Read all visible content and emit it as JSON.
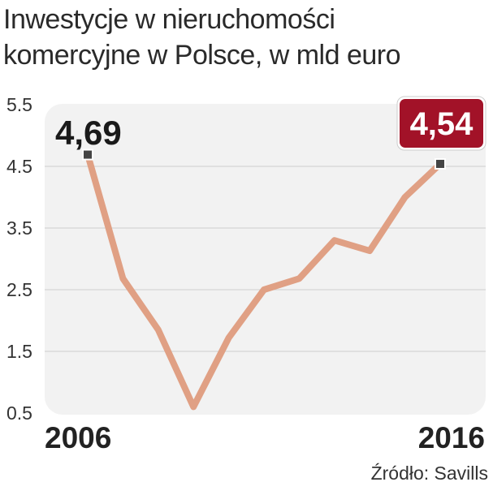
{
  "chart_data": {
    "type": "line",
    "title_lines": [
      "Inwestycje w nieruchomości",
      "komercyjne w Polsce, w mld euro"
    ],
    "x": [
      2006,
      2007,
      2008,
      2009,
      2010,
      2011,
      2012,
      2013,
      2014,
      2015,
      2016
    ],
    "x_tick_labels": [
      "2006",
      "2016"
    ],
    "y_ticks": [
      "5.5",
      "4.5",
      "3.5",
      "2.5",
      "1.5",
      "0.5"
    ],
    "ylim": [
      0.5,
      5.5
    ],
    "grid": true,
    "series": [
      {
        "values": [
          4.69,
          2.68,
          1.85,
          0.6,
          1.72,
          2.5,
          2.68,
          3.3,
          3.13,
          4.0,
          4.54
        ],
        "color": "#e0a084"
      }
    ],
    "annotations": [
      {
        "label": "4,69",
        "x": 2006,
        "y": 4.69,
        "style": "plain"
      },
      {
        "label": "4,54",
        "x": 2016,
        "y": 4.54,
        "style": "badge",
        "color": "#a21228"
      }
    ],
    "plot_background": "#f2f2f2",
    "source": "Źródło: Savills"
  }
}
